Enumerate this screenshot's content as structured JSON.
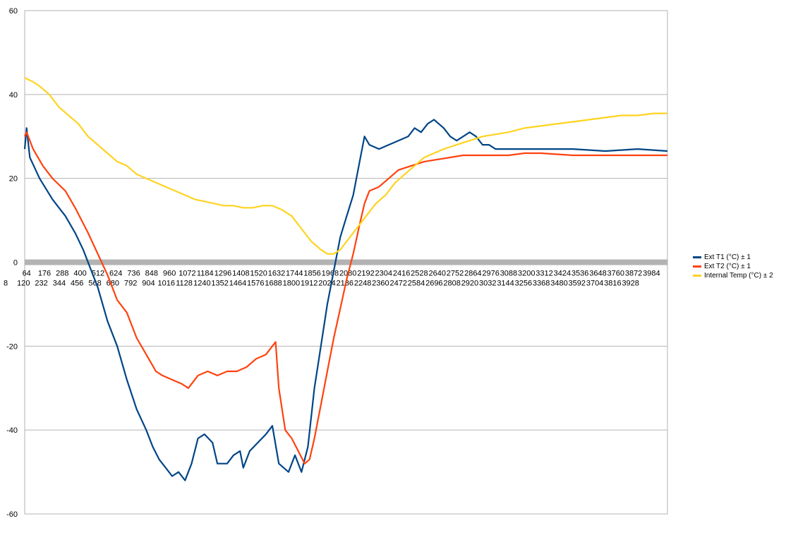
{
  "chart_data": {
    "type": "line",
    "title": "",
    "xlabel": "",
    "ylabel": "",
    "ylim": [
      -60,
      60
    ],
    "yticks": [
      -60,
      -40,
      -20,
      0,
      20,
      40,
      60
    ],
    "xlim": [
      8,
      3984
    ],
    "x_tick_labels_top": [
      "64",
      "176",
      "288",
      "400",
      "512",
      "624",
      "736",
      "848",
      "960",
      "1072",
      "1184",
      "1296",
      "1408",
      "1520",
      "1632",
      "1744",
      "1856",
      "1968",
      "2080",
      "2192",
      "2304",
      "2416",
      "2528",
      "2640",
      "2752",
      "2864",
      "2976",
      "3088",
      "3200",
      "3312",
      "3424",
      "3536",
      "3648",
      "3760",
      "3872",
      "3984"
    ],
    "x_tick_labels_bottom": [
      "8",
      "120",
      "232",
      "344",
      "456",
      "568",
      "680",
      "792",
      "904",
      "1016",
      "1128",
      "1240",
      "1352",
      "1464",
      "1576",
      "1688",
      "1800",
      "1912",
      "2024",
      "2136",
      "2248",
      "2360",
      "2472",
      "2584",
      "2696",
      "2808",
      "2920",
      "3032",
      "3144",
      "3256",
      "3368",
      "3480",
      "3592",
      "3704",
      "3816",
      "3928"
    ],
    "grid": "horizontal",
    "legend_position": "right",
    "series": [
      {
        "name": "Ext T1 (°C) ± 1",
        "color": "#004586",
        "points": [
          [
            8,
            27
          ],
          [
            20,
            32
          ],
          [
            40,
            25
          ],
          [
            100,
            20
          ],
          [
            180,
            15
          ],
          [
            260,
            11
          ],
          [
            320,
            7
          ],
          [
            370,
            3
          ],
          [
            420,
            -2
          ],
          [
            460,
            -6
          ],
          [
            520,
            -14
          ],
          [
            580,
            -20
          ],
          [
            640,
            -28
          ],
          [
            700,
            -35
          ],
          [
            760,
            -40
          ],
          [
            800,
            -44
          ],
          [
            840,
            -47
          ],
          [
            880,
            -49
          ],
          [
            920,
            -51
          ],
          [
            960,
            -50
          ],
          [
            1000,
            -52
          ],
          [
            1040,
            -48
          ],
          [
            1080,
            -42
          ],
          [
            1120,
            -41
          ],
          [
            1170,
            -43
          ],
          [
            1200,
            -48
          ],
          [
            1260,
            -48
          ],
          [
            1300,
            -46
          ],
          [
            1340,
            -45
          ],
          [
            1360,
            -49
          ],
          [
            1400,
            -45
          ],
          [
            1450,
            -43
          ],
          [
            1500,
            -41
          ],
          [
            1540,
            -39
          ],
          [
            1580,
            -48
          ],
          [
            1640,
            -50
          ],
          [
            1680,
            -46
          ],
          [
            1720,
            -50
          ],
          [
            1760,
            -44
          ],
          [
            1800,
            -30
          ],
          [
            1840,
            -20
          ],
          [
            1880,
            -10
          ],
          [
            1920,
            -2
          ],
          [
            1960,
            6
          ],
          [
            2000,
            11
          ],
          [
            2040,
            16
          ],
          [
            2080,
            24
          ],
          [
            2110,
            30
          ],
          [
            2140,
            28
          ],
          [
            2200,
            27
          ],
          [
            2260,
            28
          ],
          [
            2320,
            29
          ],
          [
            2380,
            30
          ],
          [
            2420,
            32
          ],
          [
            2460,
            31
          ],
          [
            2500,
            33
          ],
          [
            2540,
            34
          ],
          [
            2600,
            32
          ],
          [
            2640,
            30
          ],
          [
            2680,
            29
          ],
          [
            2720,
            30
          ],
          [
            2760,
            31
          ],
          [
            2800,
            30
          ],
          [
            2840,
            28
          ],
          [
            2880,
            28
          ],
          [
            2920,
            27
          ],
          [
            2960,
            27
          ],
          [
            3050,
            27
          ],
          [
            3200,
            27
          ],
          [
            3400,
            27
          ],
          [
            3600,
            26.5
          ],
          [
            3800,
            27
          ],
          [
            3984,
            26.5
          ]
        ]
      },
      {
        "name": "Ext T2 (°C) ± 1",
        "color": "#ff420e",
        "points": [
          [
            8,
            30
          ],
          [
            20,
            31
          ],
          [
            60,
            27
          ],
          [
            120,
            23
          ],
          [
            180,
            20
          ],
          [
            260,
            17
          ],
          [
            320,
            13
          ],
          [
            400,
            7
          ],
          [
            460,
            2
          ],
          [
            520,
            -3
          ],
          [
            580,
            -9
          ],
          [
            640,
            -12
          ],
          [
            700,
            -18
          ],
          [
            760,
            -22
          ],
          [
            820,
            -26
          ],
          [
            860,
            -27
          ],
          [
            920,
            -28
          ],
          [
            980,
            -29
          ],
          [
            1020,
            -30
          ],
          [
            1080,
            -27
          ],
          [
            1140,
            -26
          ],
          [
            1200,
            -27
          ],
          [
            1260,
            -26
          ],
          [
            1320,
            -26
          ],
          [
            1380,
            -25
          ],
          [
            1440,
            -23
          ],
          [
            1500,
            -22
          ],
          [
            1540,
            -20
          ],
          [
            1560,
            -19
          ],
          [
            1580,
            -30
          ],
          [
            1620,
            -40
          ],
          [
            1660,
            -42
          ],
          [
            1700,
            -45
          ],
          [
            1740,
            -48
          ],
          [
            1770,
            -47
          ],
          [
            1800,
            -42
          ],
          [
            1840,
            -34
          ],
          [
            1880,
            -26
          ],
          [
            1920,
            -18
          ],
          [
            1960,
            -11
          ],
          [
            2000,
            -4
          ],
          [
            2040,
            2
          ],
          [
            2080,
            9
          ],
          [
            2110,
            14
          ],
          [
            2140,
            17
          ],
          [
            2200,
            18
          ],
          [
            2260,
            20
          ],
          [
            2320,
            22
          ],
          [
            2400,
            23
          ],
          [
            2480,
            24
          ],
          [
            2560,
            24.5
          ],
          [
            2640,
            25
          ],
          [
            2720,
            25.5
          ],
          [
            2800,
            25.5
          ],
          [
            2900,
            25.5
          ],
          [
            3000,
            25.5
          ],
          [
            3100,
            26
          ],
          [
            3200,
            26
          ],
          [
            3400,
            25.5
          ],
          [
            3600,
            25.5
          ],
          [
            3800,
            25.5
          ],
          [
            3984,
            25.5
          ]
        ]
      },
      {
        "name": "Internal Temp (°C) ± 2",
        "color": "#ffd320",
        "points": [
          [
            8,
            44
          ],
          [
            60,
            43
          ],
          [
            100,
            42
          ],
          [
            160,
            40
          ],
          [
            220,
            37
          ],
          [
            280,
            35
          ],
          [
            340,
            33
          ],
          [
            400,
            30
          ],
          [
            460,
            28
          ],
          [
            520,
            26
          ],
          [
            580,
            24
          ],
          [
            640,
            23
          ],
          [
            700,
            21
          ],
          [
            760,
            20
          ],
          [
            820,
            19
          ],
          [
            880,
            18
          ],
          [
            940,
            17
          ],
          [
            1000,
            16
          ],
          [
            1060,
            15
          ],
          [
            1120,
            14.5
          ],
          [
            1180,
            14
          ],
          [
            1240,
            13.5
          ],
          [
            1300,
            13.5
          ],
          [
            1360,
            13
          ],
          [
            1420,
            13
          ],
          [
            1480,
            13.5
          ],
          [
            1540,
            13.5
          ],
          [
            1600,
            12.5
          ],
          [
            1660,
            11
          ],
          [
            1720,
            8
          ],
          [
            1780,
            5
          ],
          [
            1840,
            3
          ],
          [
            1880,
            2
          ],
          [
            1920,
            2
          ],
          [
            1960,
            3
          ],
          [
            2000,
            5
          ],
          [
            2060,
            8
          ],
          [
            2120,
            11
          ],
          [
            2180,
            14
          ],
          [
            2240,
            16
          ],
          [
            2300,
            19
          ],
          [
            2360,
            21
          ],
          [
            2420,
            23
          ],
          [
            2480,
            25
          ],
          [
            2540,
            26
          ],
          [
            2600,
            27
          ],
          [
            2680,
            28
          ],
          [
            2760,
            29
          ],
          [
            2840,
            30
          ],
          [
            2920,
            30.5
          ],
          [
            3000,
            31
          ],
          [
            3100,
            32
          ],
          [
            3200,
            32.5
          ],
          [
            3300,
            33
          ],
          [
            3400,
            33.5
          ],
          [
            3500,
            34
          ],
          [
            3600,
            34.5
          ],
          [
            3700,
            35
          ],
          [
            3800,
            35
          ],
          [
            3900,
            35.5
          ],
          [
            3984,
            35.5
          ]
        ]
      }
    ]
  }
}
